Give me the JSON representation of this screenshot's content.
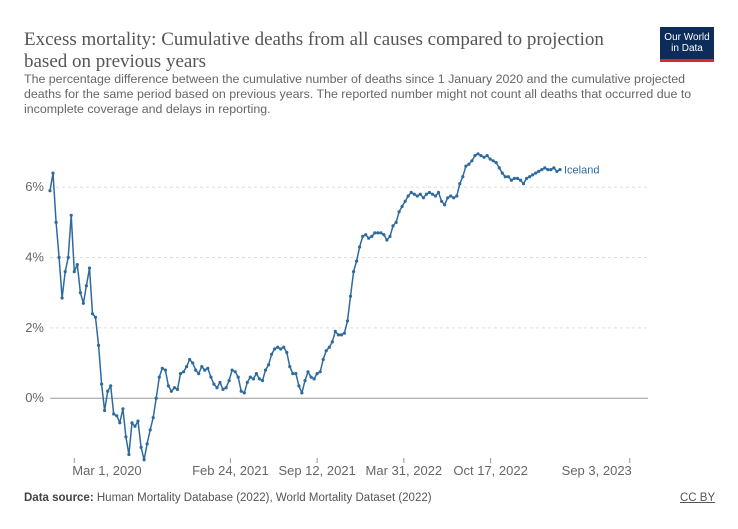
{
  "header": {
    "title": "Excess mortality: Cumulative deaths from all causes compared to projection based on previous years",
    "subtitle": "The percentage difference between the cumulative number of deaths since 1 January 2020 and the cumulative projected deaths for the same period based on previous years. The reported number might not count all deaths that occurred due to incomplete coverage and delays in reporting.",
    "logo_line1": "Our World",
    "logo_line2": "in Data"
  },
  "footer": {
    "source_label": "Data source:",
    "source_text": "Human Mortality Database (2022), World Mortality Dataset (2022)",
    "license": "CC BY"
  },
  "colors": {
    "series": "#2e6a9e",
    "grid": "#dddddd",
    "zero_line": "#9a9a9a",
    "logo_bg": "#0d2c5a",
    "logo_bar": "#d22b2b"
  },
  "chart_data": {
    "type": "line",
    "title": "Excess mortality: Cumulative deaths from all causes compared to projection based on previous years",
    "xlabel": "",
    "ylabel": "",
    "xlim": [
      "2020-01-05",
      "2023-10-15"
    ],
    "ylim": [
      -1.7,
      7.2
    ],
    "y_ticks": [
      0,
      2,
      4,
      6
    ],
    "y_tick_labels": [
      "0%",
      "2%",
      "4%",
      "6%"
    ],
    "x_ticks": [
      "2020-03-01",
      "2021-02-24",
      "2021-09-12",
      "2022-03-31",
      "2022-10-17",
      "2023-09-03"
    ],
    "x_tick_labels": [
      "Mar 1, 2020",
      "Feb 24, 2021",
      "Sep 12, 2021",
      "Mar 31, 2022",
      "Oct 17, 2022",
      "Sep 3, 2023"
    ],
    "grid": "horizontal dashed",
    "legend": "inline label at end of line",
    "series": [
      {
        "name": "Iceland",
        "points": [
          [
            "2020-01-05",
            5.9
          ],
          [
            "2020-01-12",
            6.4
          ],
          [
            "2020-01-19",
            5.0
          ],
          [
            "2020-01-26",
            4.0
          ],
          [
            "2020-02-02",
            2.85
          ],
          [
            "2020-02-09",
            3.6
          ],
          [
            "2020-02-16",
            4.0
          ],
          [
            "2020-02-23",
            5.2
          ],
          [
            "2020-03-01",
            3.6
          ],
          [
            "2020-03-08",
            3.8
          ],
          [
            "2020-03-15",
            3.0
          ],
          [
            "2020-03-22",
            2.7
          ],
          [
            "2020-03-29",
            3.2
          ],
          [
            "2020-04-05",
            3.7
          ],
          [
            "2020-04-12",
            2.4
          ],
          [
            "2020-04-19",
            2.3
          ],
          [
            "2020-04-26",
            1.5
          ],
          [
            "2020-05-03",
            0.4
          ],
          [
            "2020-05-10",
            -0.35
          ],
          [
            "2020-05-17",
            0.2
          ],
          [
            "2020-05-24",
            0.35
          ],
          [
            "2020-05-31",
            -0.45
          ],
          [
            "2020-06-07",
            -0.5
          ],
          [
            "2020-06-14",
            -0.7
          ],
          [
            "2020-06-21",
            -0.3
          ],
          [
            "2020-06-28",
            -1.1
          ],
          [
            "2020-07-05",
            -1.6
          ],
          [
            "2020-07-12",
            -0.7
          ],
          [
            "2020-07-19",
            -0.8
          ],
          [
            "2020-07-26",
            -0.65
          ],
          [
            "2020-08-02",
            -1.4
          ],
          [
            "2020-08-09",
            -1.75
          ],
          [
            "2020-08-16",
            -1.3
          ],
          [
            "2020-08-23",
            -0.9
          ],
          [
            "2020-08-30",
            -0.55
          ],
          [
            "2020-09-06",
            0.0
          ],
          [
            "2020-09-13",
            0.6
          ],
          [
            "2020-09-20",
            0.85
          ],
          [
            "2020-09-27",
            0.8
          ],
          [
            "2020-10-04",
            0.35
          ],
          [
            "2020-10-11",
            0.2
          ],
          [
            "2020-10-18",
            0.3
          ],
          [
            "2020-10-25",
            0.25
          ],
          [
            "2020-11-01",
            0.7
          ],
          [
            "2020-11-08",
            0.75
          ],
          [
            "2020-11-15",
            0.9
          ],
          [
            "2020-11-22",
            1.1
          ],
          [
            "2020-11-29",
            1.0
          ],
          [
            "2020-12-06",
            0.8
          ],
          [
            "2020-12-13",
            0.7
          ],
          [
            "2020-12-20",
            0.9
          ],
          [
            "2020-12-27",
            0.8
          ],
          [
            "2021-01-03",
            0.85
          ],
          [
            "2021-01-10",
            0.6
          ],
          [
            "2021-01-17",
            0.4
          ],
          [
            "2021-01-24",
            0.3
          ],
          [
            "2021-01-31",
            0.45
          ],
          [
            "2021-02-07",
            0.25
          ],
          [
            "2021-02-14",
            0.3
          ],
          [
            "2021-02-21",
            0.5
          ],
          [
            "2021-02-28",
            0.8
          ],
          [
            "2021-03-07",
            0.75
          ],
          [
            "2021-03-14",
            0.6
          ],
          [
            "2021-03-21",
            0.2
          ],
          [
            "2021-03-28",
            0.15
          ],
          [
            "2021-04-04",
            0.45
          ],
          [
            "2021-04-11",
            0.6
          ],
          [
            "2021-04-18",
            0.55
          ],
          [
            "2021-04-25",
            0.7
          ],
          [
            "2021-05-02",
            0.55
          ],
          [
            "2021-05-09",
            0.5
          ],
          [
            "2021-05-16",
            0.8
          ],
          [
            "2021-05-23",
            0.95
          ],
          [
            "2021-05-30",
            1.25
          ],
          [
            "2021-06-06",
            1.4
          ],
          [
            "2021-06-13",
            1.45
          ],
          [
            "2021-06-20",
            1.4
          ],
          [
            "2021-06-27",
            1.45
          ],
          [
            "2021-07-04",
            1.3
          ],
          [
            "2021-07-11",
            0.9
          ],
          [
            "2021-07-18",
            0.7
          ],
          [
            "2021-07-25",
            0.7
          ],
          [
            "2021-08-01",
            0.35
          ],
          [
            "2021-08-08",
            0.15
          ],
          [
            "2021-08-15",
            0.5
          ],
          [
            "2021-08-22",
            0.75
          ],
          [
            "2021-08-29",
            0.6
          ],
          [
            "2021-09-05",
            0.55
          ],
          [
            "2021-09-12",
            0.7
          ],
          [
            "2021-09-19",
            0.75
          ],
          [
            "2021-09-26",
            1.1
          ],
          [
            "2021-10-03",
            1.35
          ],
          [
            "2021-10-10",
            1.45
          ],
          [
            "2021-10-17",
            1.6
          ],
          [
            "2021-10-24",
            1.9
          ],
          [
            "2021-10-31",
            1.8
          ],
          [
            "2021-11-07",
            1.8
          ],
          [
            "2021-11-14",
            1.85
          ],
          [
            "2021-11-21",
            2.2
          ],
          [
            "2021-11-28",
            2.9
          ],
          [
            "2021-12-05",
            3.6
          ],
          [
            "2021-12-12",
            3.9
          ],
          [
            "2021-12-19",
            4.3
          ],
          [
            "2021-12-26",
            4.6
          ],
          [
            "2022-01-02",
            4.65
          ],
          [
            "2022-01-09",
            4.55
          ],
          [
            "2022-01-16",
            4.6
          ],
          [
            "2022-01-23",
            4.7
          ],
          [
            "2022-01-30",
            4.7
          ],
          [
            "2022-02-06",
            4.7
          ],
          [
            "2022-02-13",
            4.65
          ],
          [
            "2022-02-20",
            4.5
          ],
          [
            "2022-02-27",
            4.6
          ],
          [
            "2022-03-06",
            4.9
          ],
          [
            "2022-03-13",
            5.0
          ],
          [
            "2022-03-20",
            5.3
          ],
          [
            "2022-03-27",
            5.45
          ],
          [
            "2022-04-03",
            5.6
          ],
          [
            "2022-04-10",
            5.75
          ],
          [
            "2022-04-17",
            5.85
          ],
          [
            "2022-04-24",
            5.8
          ],
          [
            "2022-05-01",
            5.75
          ],
          [
            "2022-05-08",
            5.8
          ],
          [
            "2022-05-15",
            5.7
          ],
          [
            "2022-05-22",
            5.8
          ],
          [
            "2022-05-29",
            5.85
          ],
          [
            "2022-06-05",
            5.8
          ],
          [
            "2022-06-12",
            5.75
          ],
          [
            "2022-06-19",
            5.85
          ],
          [
            "2022-06-26",
            5.6
          ],
          [
            "2022-07-03",
            5.5
          ],
          [
            "2022-07-10",
            5.7
          ],
          [
            "2022-07-17",
            5.75
          ],
          [
            "2022-07-24",
            5.7
          ],
          [
            "2022-07-31",
            5.75
          ],
          [
            "2022-08-07",
            6.1
          ],
          [
            "2022-08-14",
            6.3
          ],
          [
            "2022-08-21",
            6.6
          ],
          [
            "2022-08-28",
            6.65
          ],
          [
            "2022-09-04",
            6.75
          ],
          [
            "2022-09-11",
            6.9
          ],
          [
            "2022-09-18",
            6.95
          ],
          [
            "2022-09-25",
            6.9
          ],
          [
            "2022-10-02",
            6.85
          ],
          [
            "2022-10-09",
            6.9
          ],
          [
            "2022-10-16",
            6.8
          ],
          [
            "2022-10-23",
            6.75
          ],
          [
            "2022-10-30",
            6.7
          ],
          [
            "2022-11-06",
            6.55
          ],
          [
            "2022-11-13",
            6.4
          ],
          [
            "2022-11-20",
            6.3
          ],
          [
            "2022-11-27",
            6.3
          ],
          [
            "2022-12-04",
            6.2
          ],
          [
            "2022-12-11",
            6.25
          ],
          [
            "2022-12-18",
            6.25
          ],
          [
            "2022-12-25",
            6.2
          ],
          [
            "2023-01-01",
            6.1
          ],
          [
            "2023-01-08",
            6.25
          ],
          [
            "2023-01-15",
            6.3
          ],
          [
            "2023-01-22",
            6.35
          ],
          [
            "2023-01-29",
            6.4
          ],
          [
            "2023-02-05",
            6.45
          ],
          [
            "2023-02-12",
            6.5
          ],
          [
            "2023-02-19",
            6.55
          ],
          [
            "2023-02-26",
            6.5
          ],
          [
            "2023-03-05",
            6.5
          ],
          [
            "2023-03-12",
            6.55
          ],
          [
            "2023-03-19",
            6.45
          ],
          [
            "2023-03-26",
            6.5
          ]
        ]
      }
    ]
  }
}
